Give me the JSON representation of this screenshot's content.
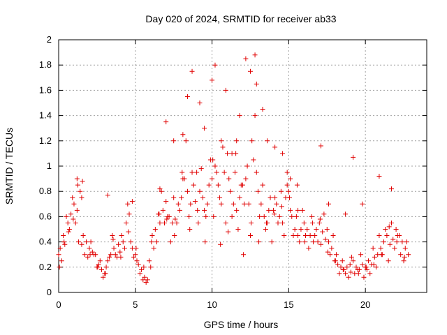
{
  "chart_data": {
    "type": "scatter",
    "title": "Day 020 of 2024, SRMTID for receiver ab33",
    "xlabel": "GPS time / hours",
    "ylabel": "SRMTID / TECUs",
    "xlim": [
      0,
      24
    ],
    "ylim": [
      0,
      2
    ],
    "xticks": [
      0,
      5,
      10,
      15,
      20
    ],
    "xtick_labels": [
      "0",
      "5",
      "10",
      "15",
      "20"
    ],
    "yticks": [
      0,
      0.2,
      0.4,
      0.6,
      0.8,
      1,
      1.2,
      1.4,
      1.6,
      1.8,
      2
    ],
    "ytick_labels": [
      "0",
      "0.2",
      "0.4",
      "0.6",
      "0.8",
      "1",
      "1.2",
      "1.4",
      "1.6",
      "1.8",
      "2"
    ],
    "grid": true,
    "marker": "+",
    "color": "#e00000",
    "series": [
      {
        "name": "SRMTID",
        "x": [
          0.0,
          0.2,
          0.4,
          0.6,
          0.8,
          1.0,
          1.2,
          1.4,
          1.6,
          1.8,
          2.0,
          2.2,
          2.4,
          2.6,
          2.8,
          3.0,
          3.2,
          3.4,
          3.6,
          3.8,
          4.0,
          4.2,
          4.4,
          4.6,
          4.8,
          5.0,
          5.2,
          5.4,
          5.6,
          5.8,
          6.0,
          6.2,
          6.4,
          6.6,
          6.8,
          7.0,
          7.2,
          7.4,
          7.6,
          7.8,
          8.0,
          8.2,
          8.4,
          8.6,
          8.8,
          9.0,
          9.2,
          9.4,
          9.6,
          9.8,
          10.0,
          10.2,
          10.4,
          10.6,
          10.8,
          11.0,
          11.2,
          11.4,
          11.6,
          11.8,
          12.0,
          12.2,
          12.4,
          12.6,
          12.8,
          13.0,
          13.2,
          13.4,
          13.6,
          13.8,
          14.0,
          14.2,
          14.4,
          14.6,
          14.8,
          15.0,
          15.2,
          15.4,
          15.6,
          15.8,
          16.0,
          16.2,
          16.4,
          16.6,
          16.8,
          17.0,
          17.2,
          17.4,
          17.6,
          17.8,
          18.0,
          18.2,
          18.4,
          18.6,
          18.8,
          19.0,
          19.2,
          19.4,
          19.6,
          19.8,
          20.0,
          20.2,
          20.4,
          20.6,
          20.8,
          21.0,
          21.2,
          21.4,
          21.6,
          21.8,
          22.0,
          22.2,
          22.4,
          22.6,
          22.8,
          0.1,
          0.3,
          0.5,
          0.7,
          0.9,
          1.1,
          1.3,
          1.5,
          1.7,
          1.9,
          2.1,
          2.3,
          2.5,
          2.7,
          2.9,
          3.1,
          3.3,
          3.5,
          3.7,
          3.9,
          4.1,
          4.3,
          4.5,
          4.7,
          4.9,
          5.1,
          5.3,
          5.5,
          5.7,
          5.9,
          6.1,
          6.3,
          6.5,
          6.7,
          6.9,
          7.1,
          7.3,
          7.5,
          7.7,
          7.9,
          8.1,
          8.3,
          8.5,
          8.7,
          8.9,
          9.1,
          9.3,
          9.5,
          9.7,
          9.9,
          10.1,
          10.3,
          10.5,
          10.7,
          10.9,
          11.1,
          11.3,
          11.5,
          11.7,
          11.9,
          12.1,
          12.3,
          12.5,
          12.7,
          12.9,
          13.1,
          13.3,
          13.5,
          13.7,
          13.9,
          14.1,
          14.3,
          14.5,
          14.7,
          14.9,
          15.1,
          15.3,
          15.5,
          15.7,
          15.9,
          16.1,
          16.3,
          16.5,
          16.7,
          16.9,
          17.1,
          17.3,
          17.5,
          17.7,
          17.9,
          18.1,
          18.3,
          18.5,
          18.7,
          18.9,
          19.1,
          19.3,
          19.5,
          19.7,
          19.9,
          20.1,
          20.3,
          20.5,
          20.7,
          20.9,
          21.1,
          21.3,
          21.5,
          21.7,
          21.9,
          22.1,
          22.3,
          22.5,
          22.7,
          0.05,
          0.35,
          0.65,
          0.95,
          1.25,
          1.55,
          2.05,
          2.55,
          3.05,
          3.55,
          4.05,
          4.55,
          5.05,
          5.55,
          6.05,
          6.55,
          7.05,
          7.55,
          8.05,
          8.55,
          9.05,
          9.55,
          10.05,
          10.55,
          11.05,
          11.55,
          12.05,
          12.55,
          13.05,
          13.55,
          14.05,
          14.55,
          15.05,
          15.55,
          16.05,
          16.55,
          17.05,
          17.55,
          18.05,
          18.55,
          19.05,
          19.55,
          20.05,
          20.55,
          21.05,
          21.55,
          22.05,
          22.55,
          1.2,
          1.5,
          3.2,
          4.8,
          6.6,
          7.0,
          7.5,
          8.1,
          8.4,
          8.7,
          9.2,
          9.5,
          10.0,
          10.2,
          10.6,
          10.9,
          11.3,
          11.6,
          11.8,
          12.2,
          12.5,
          12.8,
          12.9,
          13.3,
          13.6,
          14.1,
          14.6,
          14.9,
          15.1,
          15.6,
          17.1,
          17.6,
          18.7,
          19.2,
          19.8,
          20.9,
          21.7
        ],
        "y": [
          0.3,
          0.25,
          0.38,
          0.55,
          0.62,
          0.7,
          0.65,
          0.8,
          0.45,
          0.4,
          0.35,
          0.32,
          0.3,
          0.22,
          0.18,
          0.15,
          0.25,
          0.3,
          0.35,
          0.28,
          0.32,
          0.4,
          0.55,
          0.62,
          0.35,
          0.3,
          0.22,
          0.18,
          0.12,
          0.1,
          0.2,
          0.35,
          0.4,
          0.55,
          0.65,
          0.72,
          0.6,
          0.55,
          0.58,
          0.7,
          0.75,
          0.9,
          0.8,
          0.7,
          0.85,
          0.95,
          0.8,
          0.75,
          0.6,
          0.85,
          0.9,
          1.0,
          0.85,
          0.7,
          0.95,
          1.1,
          0.8,
          0.7,
          0.65,
          0.75,
          0.85,
          0.9,
          0.7,
          1.2,
          1.4,
          0.8,
          0.7,
          0.6,
          0.55,
          0.75,
          0.65,
          0.7,
          0.6,
          0.55,
          0.75,
          0.8,
          0.6,
          0.5,
          0.45,
          0.5,
          0.55,
          0.5,
          0.45,
          0.4,
          0.5,
          0.55,
          0.48,
          0.42,
          0.4,
          0.35,
          0.25,
          0.22,
          0.2,
          0.18,
          0.2,
          0.22,
          0.25,
          0.2,
          0.18,
          0.22,
          0.2,
          0.25,
          0.22,
          0.28,
          0.3,
          0.35,
          0.4,
          0.45,
          0.38,
          0.42,
          0.5,
          0.45,
          0.4,
          0.35,
          0.3,
          0.35,
          0.45,
          0.6,
          0.5,
          0.75,
          0.55,
          0.4,
          0.38,
          0.3,
          0.28,
          0.4,
          0.3,
          0.2,
          0.25,
          0.12,
          0.2,
          0.28,
          0.45,
          0.3,
          0.38,
          0.45,
          0.35,
          0.7,
          0.4,
          0.28,
          0.25,
          0.15,
          0.1,
          0.08,
          0.25,
          0.45,
          0.5,
          0.62,
          0.8,
          0.55,
          0.6,
          0.4,
          0.75,
          0.55,
          0.65,
          0.9,
          1.2,
          0.6,
          0.95,
          0.72,
          0.55,
          0.98,
          0.65,
          0.7,
          1.05,
          0.6,
          0.95,
          0.75,
          1.15,
          0.55,
          0.9,
          0.6,
          0.95,
          0.5,
          0.85,
          0.7,
          1.0,
          0.45,
          1.05,
          0.95,
          0.6,
          0.85,
          0.5,
          0.65,
          0.4,
          0.75,
          0.55,
          0.8,
          0.45,
          0.95,
          0.65,
          0.45,
          0.6,
          0.4,
          0.65,
          0.45,
          0.35,
          0.6,
          0.45,
          0.4,
          0.38,
          0.62,
          0.5,
          0.3,
          0.45,
          0.3,
          0.15,
          0.25,
          0.15,
          0.12,
          0.28,
          0.15,
          0.18,
          0.3,
          0.12,
          0.18,
          0.15,
          0.35,
          0.2,
          0.45,
          0.3,
          0.5,
          0.25,
          0.55,
          0.35,
          0.45,
          0.3,
          0.25,
          0.4,
          0.2,
          0.4,
          0.48,
          0.58,
          0.85,
          0.88,
          0.3,
          0.2,
          0.15,
          0.42,
          0.28,
          0.48,
          0.35,
          0.2,
          0.4,
          0.62,
          0.58,
          0.45,
          0.95,
          0.5,
          0.65,
          0.4,
          1.05,
          0.38,
          0.48,
          1.1,
          0.3,
          0.55,
          0.4,
          0.55,
          0.62,
          0.68,
          0.75,
          0.85,
          0.4,
          0.55,
          0.58,
          0.32,
          0.25,
          0.18,
          0.16,
          0.15,
          0.2,
          0.22,
          0.3,
          0.52,
          0.4,
          0.28,
          0.9,
          0.75,
          0.77,
          0.72,
          0.82,
          1.35,
          1.2,
          1.25,
          1.55,
          1.75,
          1.5,
          1.3,
          1.68,
          1.8,
          1.2,
          1.6,
          1.1,
          1.2,
          1.4,
          1.85,
          1.75,
          1.88,
          1.65,
          1.45,
          1.2,
          1.15,
          1.1,
          0.85,
          0.9,
          0.65,
          1.16,
          0.7,
          0.62,
          1.07,
          0.7,
          0.92,
          0.82
        ]
      }
    ]
  }
}
